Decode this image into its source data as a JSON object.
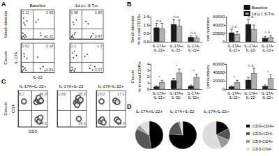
{
  "panels": [
    {
      "letter": "A",
      "row_titles": [
        "Small intestine",
        "Cecum"
      ],
      "column_titles": [
        "Baseline",
        "1d p.i. S.Tm"
      ]
    },
    {
      "letter": "B",
      "row_titles": [
        "Small intestine",
        "Cecum"
      ]
    },
    {
      "letter": "C",
      "row_titles": [
        "Cecum"
      ]
    },
    {
      "letter": "D"
    }
  ],
  "chart_data": [
    {
      "panel": "A",
      "type": "scatter",
      "marker": "dot",
      "color": "#000000",
      "tick_labels": false,
      "x": [
        4,
        7,
        10,
        12,
        6,
        15,
        9,
        18,
        8,
        12,
        45,
        52,
        60,
        72,
        58
      ],
      "values": [
        6,
        10,
        5,
        14,
        20,
        8,
        55,
        62,
        72,
        48,
        58,
        66,
        12,
        8,
        20
      ],
      "xlim": [
        0,
        100
      ],
      "ylim": [
        0,
        100
      ],
      "gates": {
        "x": 35,
        "y": 35
      },
      "annotations": [
        {
          "text": "1.12",
          "x": 3,
          "y": 97
        },
        {
          "text": "0.95",
          "x": 97,
          "y": 97
        },
        {
          "text": "0.31",
          "x": 97,
          "y": 3
        }
      ]
    },
    {
      "panel": "A",
      "type": "scatter",
      "marker": "dot",
      "color": "#000000",
      "tick_labels": false,
      "x": [
        5,
        8,
        11,
        14,
        7,
        16,
        10,
        20,
        12,
        48,
        55,
        65,
        70,
        62
      ],
      "values": [
        7,
        12,
        4,
        16,
        9,
        22,
        58,
        65,
        50,
        60,
        52,
        10,
        18,
        6
      ],
      "xlim": [
        0,
        100
      ],
      "ylim": [
        0,
        100
      ],
      "gates": {
        "x": 35,
        "y": 35
      },
      "annotations": [
        {
          "text": "0.98",
          "x": 3,
          "y": 97
        },
        {
          "text": "0.86",
          "x": 97,
          "y": 97
        },
        {
          "text": "0.47",
          "x": 97,
          "y": 3
        }
      ]
    },
    {
      "panel": "A",
      "type": "scatter",
      "marker": "dot",
      "color": "#000000",
      "tick_labels": false,
      "x_label": "IL-22",
      "y_label": "IL-17A",
      "x": [
        4,
        8,
        12,
        6,
        15,
        10,
        18,
        9,
        50,
        58,
        66,
        72
      ],
      "values": [
        5,
        9,
        14,
        20,
        7,
        55,
        48,
        64,
        52,
        12,
        20,
        6
      ],
      "xlim": [
        0,
        100
      ],
      "ylim": [
        0,
        100
      ],
      "gates": {
        "x": 35,
        "y": 35
      },
      "annotations": [
        {
          "text": "0.62",
          "x": 3,
          "y": 97
        },
        {
          "text": "0.18",
          "x": 97,
          "y": 97
        },
        {
          "text": "0.81",
          "x": 97,
          "y": 3
        }
      ]
    },
    {
      "panel": "A",
      "type": "scatter",
      "marker": "dot",
      "color": "#000000",
      "tick_labels": false,
      "x": [
        5,
        9,
        13,
        7,
        16,
        11,
        20,
        8,
        14,
        45,
        52,
        60,
        68,
        75,
        62
      ],
      "values": [
        6,
        10,
        5,
        18,
        12,
        50,
        58,
        66,
        72,
        55,
        62,
        14,
        8,
        20,
        25
      ],
      "xlim": [
        0,
        100
      ],
      "ylim": [
        0,
        100
      ],
      "gates": {
        "x": 35,
        "y": 35
      },
      "annotations": [
        {
          "text": "2.1",
          "x": 3,
          "y": 97
        },
        {
          "text": "1.3",
          "x": 97,
          "y": 97
        },
        {
          "text": "0.97",
          "x": 97,
          "y": 3
        }
      ]
    },
    {
      "panel": "B",
      "type": "bar",
      "legend": "top-right",
      "grid": false,
      "y_label": "% in total CD45+",
      "categories": [
        "IL-17A+ IL-22+",
        "IL-17A+ IL-22-",
        "IL-17A- IL-22+"
      ],
      "series": [
        {
          "name": "Baseline",
          "color": "#1a1a1a",
          "values": [
            0.85,
            1.05,
            0.28
          ],
          "errors": [
            0.25,
            0.3,
            0.08
          ]
        },
        {
          "name": "1d p.i. S.Tm",
          "color": "#b0b0b0",
          "values": [
            0.8,
            0.95,
            0.25
          ],
          "errors": [
            0.3,
            0.35,
            0.1
          ]
        }
      ],
      "ylim": [
        0,
        1.5
      ],
      "yticks": [
        {
          "value": 0,
          "label": "0.0"
        },
        0.5,
        {
          "value": 1,
          "label": "1.0"
        },
        1.5
      ],
      "significance": [
        "n.s.",
        "n.s.",
        "n.s."
      ]
    },
    {
      "panel": "B",
      "type": "bar",
      "grid": false,
      "y_label": "cell numbers",
      "categories": [
        "IL-17A+ IL-22+",
        "IL-17A+ IL-22-",
        "IL-17A- IL-22+"
      ],
      "series": [
        {
          "color": "#1a1a1a",
          "values": [
            22000,
            42000,
            9000
          ],
          "errors": [
            8000,
            12000,
            4000
          ]
        },
        {
          "color": "#b0b0b0",
          "values": [
            18000,
            30000,
            11000
          ],
          "errors": [
            6000,
            10000,
            5000
          ]
        }
      ],
      "ylim": [
        0,
        60000
      ],
      "yticks": [
        0,
        20000,
        40000,
        60000
      ],
      "significance": [
        "n.s.",
        "n.s.",
        "n.s."
      ]
    },
    {
      "panel": "B",
      "type": "bar",
      "grid": false,
      "y_label": "% in total CD45+",
      "categories": [
        "IL-17A+ IL-22+",
        "IL-17A+ IL-22-",
        "IL-17A- IL-22+"
      ],
      "series": [
        {
          "color": "#1a1a1a",
          "values": [
            0.4,
            1.4,
            0.5
          ],
          "errors": [
            0.1,
            0.3,
            0.15
          ]
        },
        {
          "color": "#b0b0b0",
          "values": [
            1.1,
            2.6,
            1.9
          ],
          "errors": [
            0.3,
            0.6,
            0.5
          ]
        }
      ],
      "ylim": [
        0,
        4
      ],
      "yticks": [
        0,
        1,
        2,
        3,
        4
      ],
      "significance": [
        "*",
        "*",
        "*"
      ]
    },
    {
      "panel": "B",
      "type": "bar",
      "grid": false,
      "y_label": "cell numbers",
      "categories": [
        "IL-17A+ IL-22+",
        "IL-17A+ IL-22-",
        "IL-17A- IL-22+"
      ],
      "series": [
        {
          "color": "#1a1a1a",
          "values": [
            6000,
            22000,
            7000
          ],
          "errors": [
            2000,
            6000,
            3000
          ]
        },
        {
          "color": "#b0b0b0",
          "values": [
            16000,
            38000,
            26000
          ],
          "errors": [
            5000,
            12000,
            8000
          ]
        }
      ],
      "ylim": [
        0,
        60000
      ],
      "yticks": [
        0,
        20000,
        40000,
        60000
      ],
      "significance": [
        "*",
        "n.s.",
        "*"
      ]
    },
    {
      "panel": "C",
      "type": "scatter",
      "marker": "ring",
      "color": "#333333",
      "tick_labels": false,
      "title": "IL-17A+IL-22+",
      "x_label": "CD3",
      "y_label": "CD4",
      "x": [
        62,
        68,
        74,
        70,
        78,
        66,
        72,
        76,
        20
      ],
      "values": [
        68,
        74,
        70,
        80,
        72,
        20,
        15,
        25,
        70
      ],
      "xlim": [
        0,
        100
      ],
      "ylim": [
        0,
        100
      ],
      "gates": {
        "x": 45,
        "y": 45
      },
      "annotations": [
        {
          "text": "5.2",
          "x": 3,
          "y": 97
        },
        {
          "text": "48.0",
          "x": 97,
          "y": 97
        },
        {
          "text": "34.6",
          "x": 97,
          "y": 3
        }
      ]
    },
    {
      "panel": "C",
      "type": "scatter",
      "marker": "ring",
      "color": "#333333",
      "tick_labels": false,
      "title": "IL-17A+IL-22-",
      "x": [
        64,
        70,
        76,
        72,
        68,
        80,
        74
      ],
      "values": [
        66,
        72,
        70,
        80,
        60,
        74,
        22
      ],
      "xlim": [
        0,
        100
      ],
      "ylim": [
        0,
        100
      ],
      "gates": {
        "x": 45,
        "y": 45
      },
      "annotations": [
        {
          "text": "1.69",
          "x": 3,
          "y": 97
        },
        {
          "text": "76.3",
          "x": 97,
          "y": 97
        },
        {
          "text": "19.0",
          "x": 97,
          "y": 3
        }
      ]
    },
    {
      "panel": "C",
      "type": "scatter",
      "marker": "ring",
      "color": "#333333",
      "tick_labels": false,
      "title": "IL-17A-IL-22+",
      "x": [
        15,
        20,
        25,
        18,
        65,
        72,
        70,
        76
      ],
      "values": [
        15,
        20,
        12,
        70,
        72,
        68,
        20,
        15
      ],
      "xlim": [
        0,
        100
      ],
      "ylim": [
        0,
        100
      ],
      "gates": {
        "x": 45,
        "y": 45
      },
      "annotations": [
        {
          "text": "13.0",
          "x": 3,
          "y": 97
        },
        {
          "text": "17.1",
          "x": 97,
          "y": 97
        },
        {
          "text": "13.9",
          "x": 97,
          "y": 3
        }
      ]
    },
    {
      "panel": "D",
      "type": "pie",
      "title": "IL-17A+IL-22+",
      "categories": [
        "CD3+CD4+",
        "CD3+CD4-",
        "CD3-CD4+",
        "CD3-CD4-"
      ],
      "values": [
        48.0,
        34.6,
        5.2,
        12.2
      ],
      "colors": [
        "#000000",
        "#555555",
        "#999999",
        "#dddddd"
      ]
    },
    {
      "panel": "D",
      "type": "pie",
      "title": "IL-17A+IL-22-",
      "categories": [
        "CD3+CD4+",
        "CD3+CD4-",
        "CD3-CD4+",
        "CD3-CD4-"
      ],
      "values": [
        76.3,
        19.0,
        1.69,
        3.01
      ],
      "colors": [
        "#000000",
        "#555555",
        "#999999",
        "#dddddd"
      ]
    },
    {
      "panel": "D",
      "type": "pie",
      "title": "IL-17A-IL-22+",
      "legend": "right",
      "categories": [
        "CD3+CD4+",
        "CD3+CD4-",
        "CD3-CD4+",
        "CD3-CD4-"
      ],
      "values": [
        17.1,
        13.9,
        13.0,
        56.0
      ],
      "colors": [
        "#000000",
        "#555555",
        "#999999",
        "#dddddd"
      ]
    }
  ]
}
